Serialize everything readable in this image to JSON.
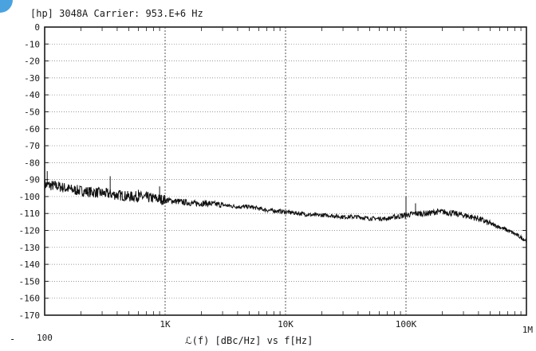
{
  "chart_data": {
    "type": "line",
    "title": "[hp] 3048A  Carrier: 953.E+6 Hz",
    "xlabel": "ℒ(f) [dBc/Hz] vs f[Hz]",
    "x_scale": "log",
    "xlim": [
      100,
      1000000
    ],
    "ylim": [
      -170,
      0
    ],
    "grid": true,
    "y_ticks": [
      0,
      -10,
      -20,
      -30,
      -40,
      -50,
      -60,
      -70,
      -80,
      -90,
      -100,
      -110,
      -120,
      -130,
      -140,
      -150,
      -160,
      -170
    ],
    "y_tick_labels": [
      "0",
      "-10",
      "-20",
      "-30",
      "-40",
      "-50",
      "-60",
      "-70",
      "-80",
      "-90",
      "-100",
      "-110",
      "-120",
      "-130",
      "-140",
      "-150",
      "-160",
      "-170"
    ],
    "x_ticks": [
      100,
      1000,
      10000,
      100000,
      1000000
    ],
    "x_tick_labels": [
      "100",
      "1K",
      "10K",
      "100K",
      "1M"
    ],
    "series": [
      {
        "x": [
          100,
          130,
          170,
          220,
          300,
          400,
          500,
          600,
          800,
          1000,
          1300,
          1700,
          2200,
          3000,
          4000,
          5000,
          7000,
          10000,
          13000,
          17000,
          22000,
          30000,
          40000,
          50000,
          60000,
          70000,
          80000,
          100000,
          120000,
          150000,
          180000,
          200000,
          250000,
          300000,
          400000,
          500000,
          600000,
          700000,
          800000,
          1000000
        ],
        "y": [
          -93,
          -94,
          -96,
          -97,
          -98,
          -99,
          -100,
          -100,
          -101,
          -102,
          -103,
          -104,
          -104,
          -105,
          -106,
          -106,
          -108,
          -109,
          -110,
          -111,
          -111,
          -112,
          -112,
          -113,
          -113,
          -113,
          -112,
          -111,
          -110,
          -110,
          -109,
          -109,
          -110,
          -111,
          -113,
          -116,
          -118,
          -120,
          -122,
          -126
        ]
      }
    ],
    "spurs": [
      {
        "x": 105,
        "y": -85
      },
      {
        "x": 350,
        "y": -88
      },
      {
        "x": 600,
        "y": -96
      },
      {
        "x": 700,
        "y": -97
      },
      {
        "x": 900,
        "y": -94
      },
      {
        "x": 100000,
        "y": -100
      },
      {
        "x": 120000,
        "y": -104
      }
    ]
  }
}
